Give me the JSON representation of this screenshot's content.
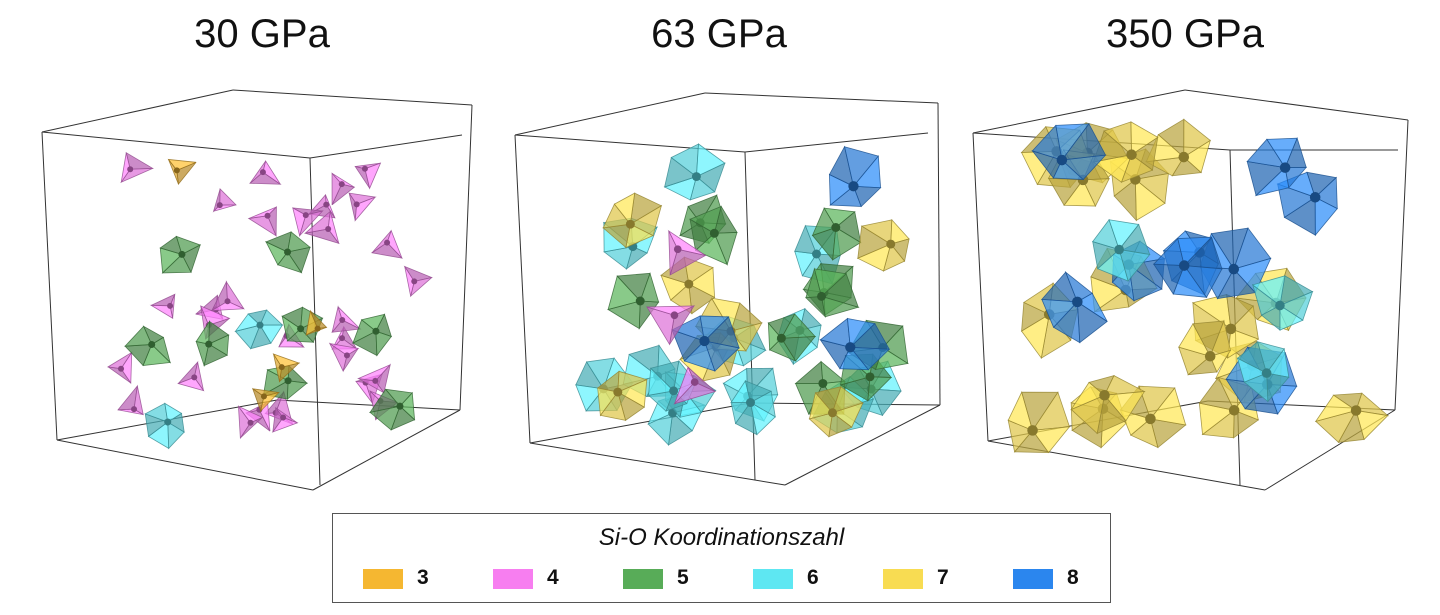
{
  "panels": [
    {
      "title": "30 GPa",
      "clusters": [
        {
          "c": "4",
          "n": 30,
          "r": 17
        },
        {
          "c": "5",
          "n": 8,
          "r": 22
        },
        {
          "c": "3",
          "n": 4,
          "r": 15
        },
        {
          "c": "6",
          "n": 2,
          "r": 22
        }
      ]
    },
    {
      "title": "63 GPa",
      "clusters": [
        {
          "c": "6",
          "n": 14,
          "r": 28
        },
        {
          "c": "5",
          "n": 10,
          "r": 28
        },
        {
          "c": "7",
          "n": 7,
          "r": 28
        },
        {
          "c": "8",
          "n": 3,
          "r": 32
        },
        {
          "c": "4",
          "n": 3,
          "r": 24
        }
      ]
    },
    {
      "title": "350 GPa",
      "clusters": [
        {
          "c": "7",
          "n": 18,
          "r": 33
        },
        {
          "c": "8",
          "n": 9,
          "r": 33
        },
        {
          "c": "6",
          "n": 3,
          "r": 30
        }
      ]
    }
  ],
  "legend": {
    "title": "Si-O Koordinationszahl",
    "items": [
      {
        "label": "3",
        "color": "#f5b731"
      },
      {
        "label": "4",
        "color": "#f77ef0"
      },
      {
        "label": "5",
        "color": "#58ac58"
      },
      {
        "label": "6",
        "color": "#5ee7f2"
      },
      {
        "label": "7",
        "color": "#f8dc52"
      },
      {
        "label": "8",
        "color": "#2b86ee"
      }
    ]
  }
}
